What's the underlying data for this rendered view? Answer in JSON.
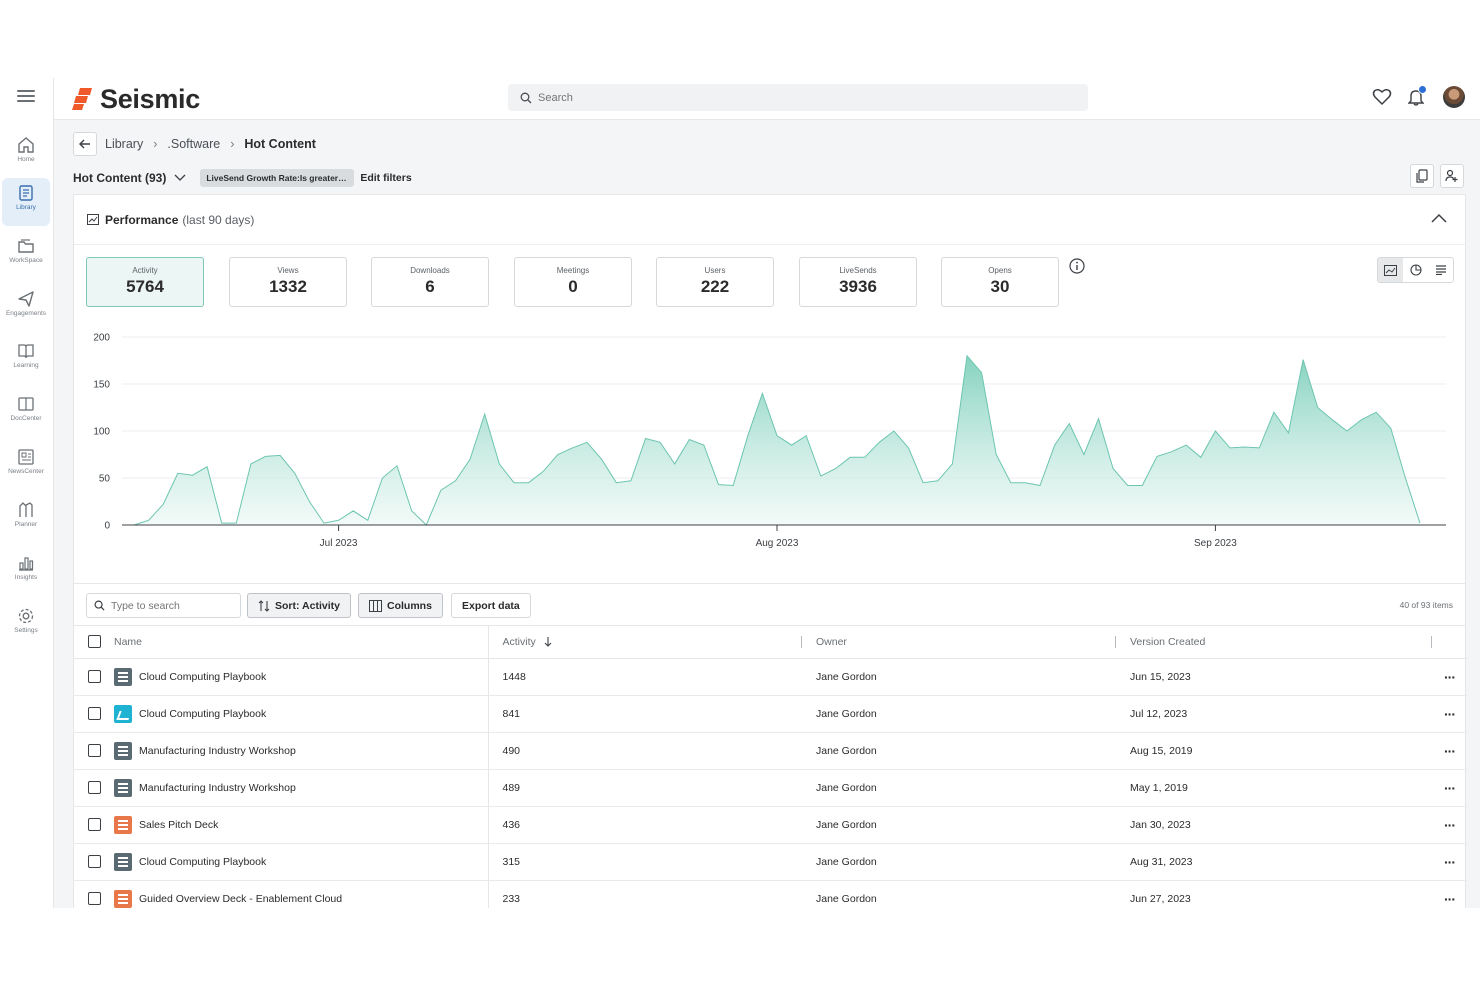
{
  "rail": {
    "items": [
      {
        "label": "Home",
        "icon": "home-icon"
      },
      {
        "label": "Library",
        "icon": "library-icon"
      },
      {
        "label": "WorkSpace",
        "icon": "workspace-icon"
      },
      {
        "label": "Engagements",
        "icon": "send-icon"
      },
      {
        "label": "Learning",
        "icon": "book-icon"
      },
      {
        "label": "DocCenter",
        "icon": "doc-icon"
      },
      {
        "label": "NewsCenter",
        "icon": "news-icon"
      },
      {
        "label": "Planner",
        "icon": "planner-icon"
      },
      {
        "label": "Insights",
        "icon": "chart-icon"
      },
      {
        "label": "Settings",
        "icon": "gear-icon"
      }
    ]
  },
  "header": {
    "brand": "Seismic",
    "search_placeholder": "Search",
    "brand_color": "#f0592a"
  },
  "breadcrumb": {
    "items": [
      "Library",
      ".Software"
    ],
    "current": "Hot Content"
  },
  "filter": {
    "title": "Hot Content (93)",
    "chip": "LiveSend Growth Rate:Is greater t...",
    "edit": "Edit filters"
  },
  "performance": {
    "title": "Performance",
    "subtitle": "(last 90 days)",
    "metrics": [
      {
        "label": "Activity",
        "value": "5764"
      },
      {
        "label": "Views",
        "value": "1332"
      },
      {
        "label": "Downloads",
        "value": "6"
      },
      {
        "label": "Meetings",
        "value": "0"
      },
      {
        "label": "Users",
        "value": "222"
      },
      {
        "label": "LiveSends",
        "value": "3936"
      },
      {
        "label": "Opens",
        "value": "30"
      }
    ]
  },
  "chart_data": {
    "type": "area",
    "title": "",
    "xlabel": "",
    "ylabel": "",
    "ylim": [
      0,
      200
    ],
    "yticks": [
      "0",
      "50",
      "100",
      "150",
      "200"
    ],
    "xtick_labels": [
      "Jul 2023",
      "Aug 2023",
      "Sep 2023"
    ],
    "xtick_index": [
      14,
      44,
      74
    ],
    "grid": true,
    "color": "#6cc5b0",
    "x_start": "Jun 17, 2023",
    "values": [
      0,
      5,
      22,
      55,
      53,
      62,
      2,
      2,
      65,
      73,
      74,
      55,
      25,
      2,
      5,
      15,
      5,
      50,
      63,
      15,
      0,
      37,
      47,
      70,
      118,
      65,
      45,
      45,
      57,
      75,
      82,
      88,
      70,
      45,
      47,
      92,
      88,
      65,
      91,
      85,
      43,
      42,
      95,
      140,
      95,
      85,
      95,
      52,
      60,
      72,
      72,
      88,
      100,
      82,
      45,
      47,
      65,
      180,
      162,
      75,
      45,
      45,
      42,
      85,
      108,
      75,
      113,
      60,
      42,
      42,
      73,
      78,
      85,
      72,
      100,
      82,
      83,
      82,
      120,
      98,
      176,
      125,
      112,
      100,
      112,
      120,
      103,
      50,
      2
    ]
  },
  "table": {
    "search_placeholder": "Type to search",
    "sort_label": "Sort: Activity",
    "columns_label": "Columns",
    "export_label": "Export data",
    "count_text": "40 of 93 items",
    "headers": {
      "name": "Name",
      "activity": "Activity",
      "owner": "Owner",
      "version": "Version Created"
    },
    "rows": [
      {
        "type": "doc",
        "name": "Cloud Computing Playbook",
        "activity": "1448",
        "owner": "Jane Gordon",
        "version": "Jun 15, 2023"
      },
      {
        "type": "img",
        "name": "Cloud Computing Playbook",
        "activity": "841",
        "owner": "Jane Gordon",
        "version": "Jul 12, 2023"
      },
      {
        "type": "doc",
        "name": "Manufacturing Industry Workshop",
        "activity": "490",
        "owner": "Jane Gordon",
        "version": "Aug 15, 2019"
      },
      {
        "type": "doc",
        "name": "Manufacturing Industry Workshop",
        "activity": "489",
        "owner": "Jane Gordon",
        "version": "May 1, 2019"
      },
      {
        "type": "ppt",
        "name": "Sales Pitch Deck",
        "activity": "436",
        "owner": "Jane Gordon",
        "version": "Jan 30, 2023"
      },
      {
        "type": "doc",
        "name": "Cloud Computing Playbook",
        "activity": "315",
        "owner": "Jane Gordon",
        "version": "Aug 31, 2023"
      },
      {
        "type": "ppt",
        "name": "Guided Overview Deck - Enablement Cloud",
        "activity": "233",
        "owner": "Jane Gordon",
        "version": "Jun 27, 2023"
      }
    ]
  }
}
